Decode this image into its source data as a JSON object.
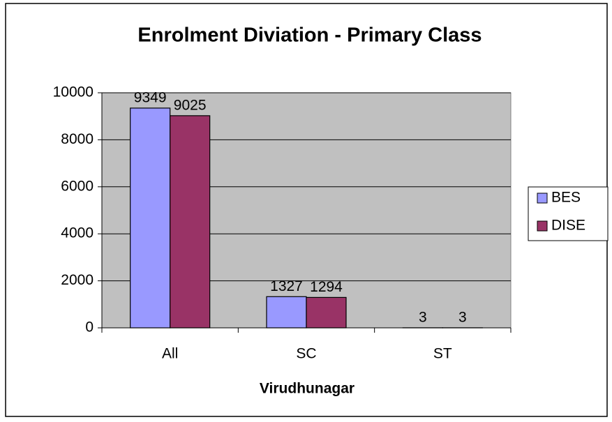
{
  "chart_data": {
    "type": "bar",
    "title": "Enrolment Diviation - Primary Class",
    "x_label": "Virudhunagar",
    "categories": [
      "All",
      "SC",
      "ST"
    ],
    "series": [
      {
        "name": "BES",
        "color": "#9999ff",
        "values": [
          9349,
          1327,
          3
        ]
      },
      {
        "name": "DISE",
        "color": "#993366",
        "values": [
          9025,
          1294,
          3
        ]
      }
    ],
    "ylim": [
      0,
      10000
    ],
    "yticks": [
      0,
      2000,
      4000,
      6000,
      8000,
      10000
    ],
    "grid": true,
    "legend": "right"
  }
}
